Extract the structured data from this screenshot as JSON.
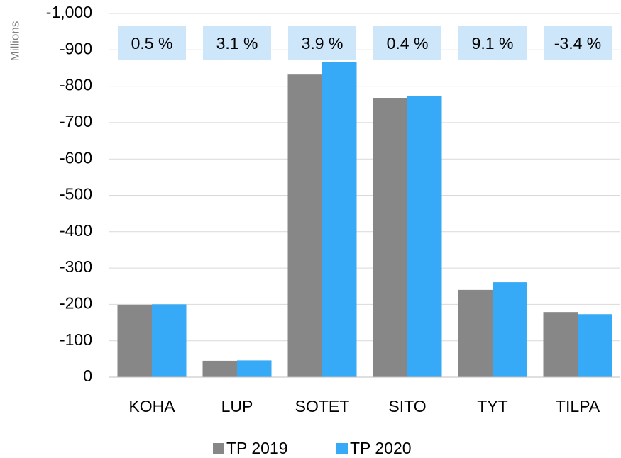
{
  "chart_data": {
    "type": "bar",
    "categories": [
      "KOHA",
      "LUP",
      "SOTET",
      "SITO",
      "TYT",
      "TILPA"
    ],
    "series": [
      {
        "name": "TP 2019",
        "color": "#878787",
        "values": [
          -199,
          -45,
          -832,
          -768,
          -240,
          -179
        ]
      },
      {
        "name": "TP 2020",
        "color": "#36a9f7",
        "values": [
          -200,
          -46,
          -866,
          -772,
          -261,
          -173
        ]
      }
    ],
    "annotations": [
      "0.5 %",
      "3.1 %",
      "3.9 %",
      "0.4 %",
      "9.1 %",
      "-3.4 %"
    ],
    "y_unit_label": "Millions",
    "ylim": [
      0,
      -1000
    ],
    "yticks": [
      0,
      -100,
      -200,
      -300,
      -400,
      -500,
      -600,
      -700,
      -800,
      -900,
      {
        "value": -1000,
        "label": "-1,000"
      }
    ],
    "grid": true,
    "legend": "bottom"
  }
}
